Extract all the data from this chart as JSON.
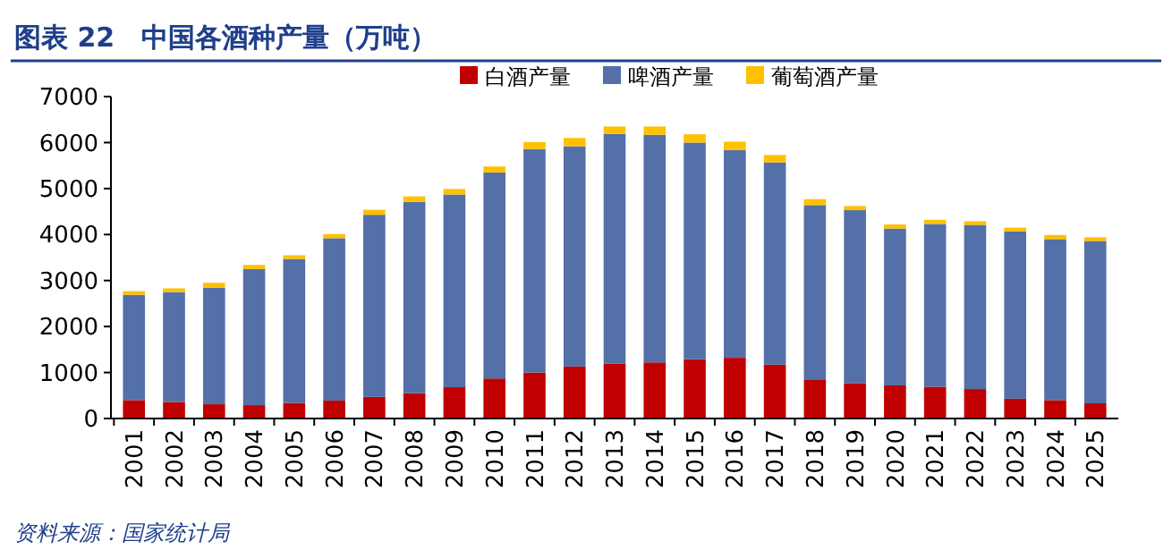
{
  "chart_data": {
    "type": "bar",
    "title": "图表 22　中国各酒种产量（万吨）",
    "stacked": true,
    "categories": [
      "2001",
      "2002",
      "2003",
      "2004",
      "2005",
      "2006",
      "2007",
      "2008",
      "2009",
      "2010",
      "2011",
      "2012",
      "2013",
      "2014",
      "2015",
      "2016",
      "2017",
      "2018",
      "2019",
      "2020",
      "2021",
      "2022",
      "2023",
      "2024",
      "2025"
    ],
    "series": [
      {
        "name": "白酒产量",
        "color": "#c00000",
        "values": [
          400,
          360,
          310,
          290,
          340,
          390,
          470,
          550,
          680,
          870,
          1000,
          1130,
          1190,
          1220,
          1290,
          1320,
          1170,
          850,
          770,
          720,
          690,
          640,
          430,
          400,
          330
        ]
      },
      {
        "name": "啤酒产量",
        "color": "#5470a8",
        "values": [
          2290,
          2390,
          2530,
          2960,
          3130,
          3530,
          3960,
          4160,
          4190,
          4480,
          4860,
          4790,
          5000,
          4950,
          4710,
          4520,
          4400,
          3790,
          3760,
          3410,
          3540,
          3570,
          3640,
          3500,
          3530
        ]
      },
      {
        "name": "葡萄酒产量",
        "color": "#ffc000",
        "values": [
          80,
          80,
          110,
          90,
          80,
          90,
          110,
          120,
          120,
          130,
          150,
          180,
          160,
          180,
          180,
          180,
          160,
          130,
          90,
          90,
          90,
          80,
          80,
          90,
          80
        ]
      }
    ],
    "ylim": [
      0,
      7000
    ],
    "yticks": [
      0,
      1000,
      2000,
      3000,
      4000,
      5000,
      6000,
      7000
    ],
    "legend": "top",
    "annotations": [
      "资料来源：国家统计局"
    ]
  }
}
